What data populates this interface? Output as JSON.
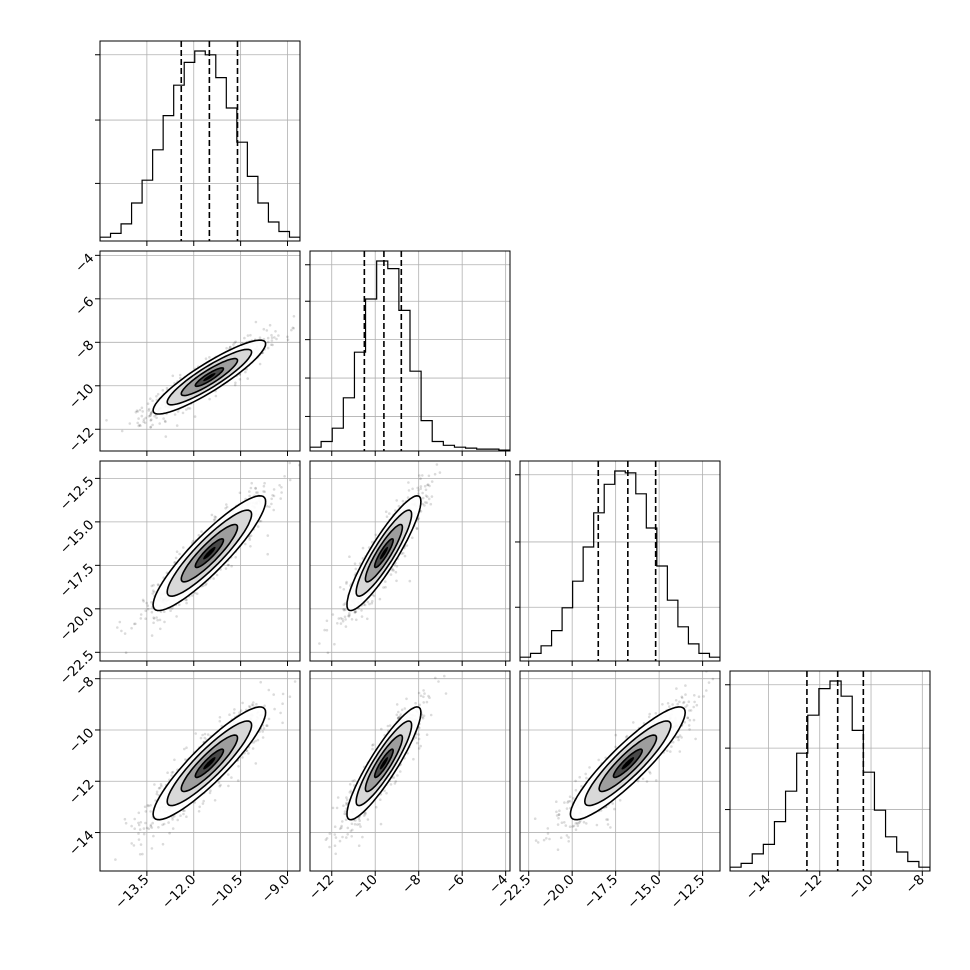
{
  "chart_data": {
    "type": "corner",
    "parameters": [
      {
        "mean": -11.5,
        "sd": 0.9,
        "range": [
          -15.0,
          -8.6
        ],
        "ticks": [
          -13.5,
          -12.0,
          -10.5,
          -9.0
        ],
        "tick_labels": [
          "−13.5",
          "−12.0",
          "−10.5",
          "−9.0"
        ],
        "quantiles": [
          -12.4,
          -11.5,
          -10.6
        ]
      },
      {
        "mean": -9.6,
        "sd": 0.85,
        "range": [
          -13.0,
          -3.8
        ],
        "ticks": [
          -12,
          -10,
          -8,
          -6,
          -4
        ],
        "tick_labels": [
          "−12",
          "−10",
          "−8",
          "−6",
          "−4"
        ],
        "quantiles": [
          -10.5,
          -9.6,
          -8.8
        ]
      },
      {
        "mean": -16.8,
        "sd": 1.65,
        "range": [
          -23.0,
          -11.5
        ],
        "ticks": [
          -22.5,
          -20.0,
          -17.5,
          -15.0,
          -12.5
        ],
        "tick_labels": [
          "−22.5",
          "−20.0",
          "−17.5",
          "−15.0",
          "−12.5"
        ],
        "quantiles": [
          -18.5,
          -16.8,
          -15.2
        ]
      },
      {
        "mean": -11.3,
        "sd": 1.1,
        "range": [
          -15.5,
          -7.7
        ],
        "ticks": [
          -14,
          -12,
          -10,
          -8
        ],
        "tick_labels": [
          "−14",
          "−12",
          "−10",
          "−8"
        ],
        "quantiles": [
          -12.5,
          -11.3,
          -10.3
        ]
      }
    ],
    "correlation": 0.9,
    "histograms": [
      [
        0.02,
        0.04,
        0.09,
        0.2,
        0.32,
        0.48,
        0.66,
        0.82,
        0.94,
        1.0,
        0.98,
        0.86,
        0.7,
        0.52,
        0.34,
        0.2,
        0.1,
        0.05,
        0.02
      ],
      [
        0.02,
        0.05,
        0.12,
        0.28,
        0.52,
        0.8,
        1.0,
        0.96,
        0.74,
        0.42,
        0.16,
        0.05,
        0.03,
        0.02,
        0.015,
        0.01,
        0.01,
        0.005
      ],
      [
        0.02,
        0.04,
        0.08,
        0.16,
        0.28,
        0.42,
        0.6,
        0.78,
        0.93,
        1.0,
        0.99,
        0.88,
        0.7,
        0.5,
        0.32,
        0.18,
        0.09,
        0.04,
        0.02
      ],
      [
        0.02,
        0.04,
        0.09,
        0.14,
        0.26,
        0.42,
        0.62,
        0.82,
        0.96,
        1.0,
        0.92,
        0.74,
        0.52,
        0.32,
        0.18,
        0.1,
        0.05,
        0.02
      ]
    ],
    "histogram_y_gridlines": [
      [
        0.97,
        0.63,
        0.3
      ],
      [
        0.97,
        0.78,
        0.58,
        0.38,
        0.18
      ],
      [
        0.97,
        0.62,
        0.28
      ],
      [
        0.97,
        0.64,
        0.32
      ]
    ],
    "contour_levels_sigma": [
      0.5,
      1.0,
      1.5,
      2.0
    ],
    "scatter_points_per_panel": 900,
    "grid": true,
    "colors": {
      "scatter": "#000000",
      "hist": "#000000"
    }
  }
}
